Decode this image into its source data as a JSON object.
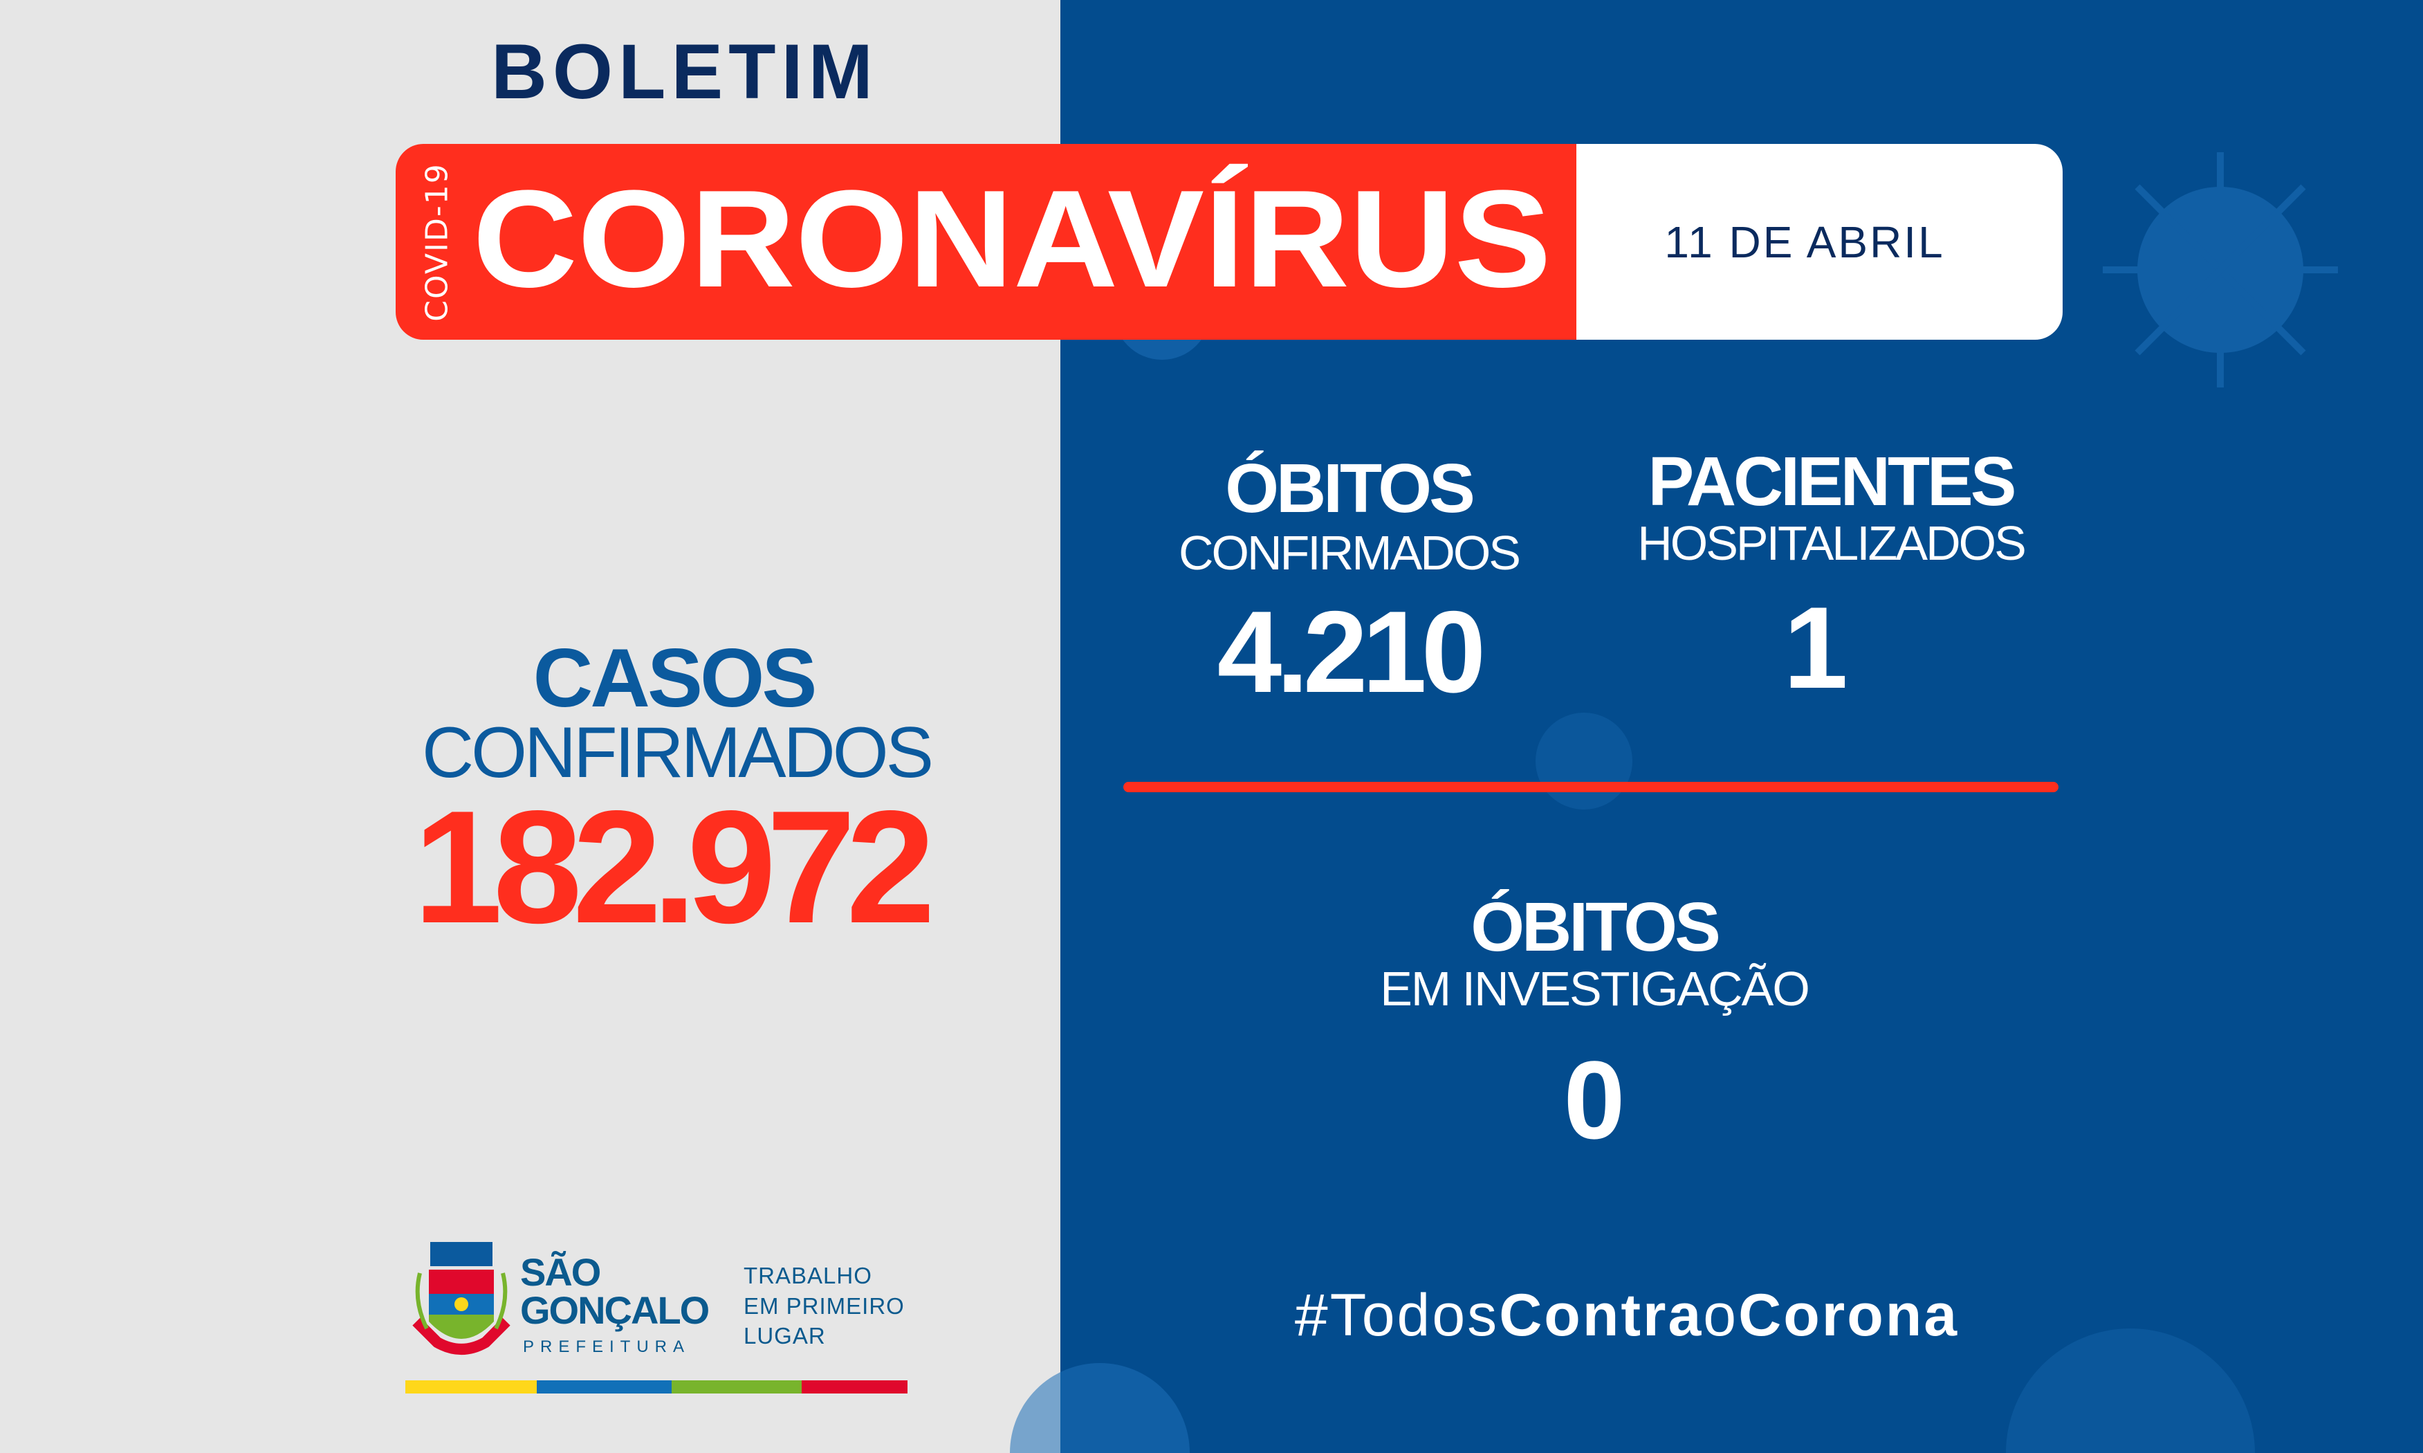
{
  "header": {
    "title": "BOLETIM",
    "banner": "CORONAVÍRUS",
    "vertical_tag": "COVID-19",
    "date": "11 DE ABRIL"
  },
  "cases": {
    "title": "CASOS",
    "subtitle": "CONFIRMADOS",
    "value": "182.972"
  },
  "deaths": {
    "title": "ÓBITOS",
    "subtitle": "CONFIRMADOS",
    "value": "4.210"
  },
  "hospitalized": {
    "title": "PACIENTES",
    "subtitle": "HOSPITALIZADOS",
    "value": "1"
  },
  "investigation": {
    "title": "ÓBITOS",
    "subtitle": "EM INVESTIGAÇÃO",
    "value": "0"
  },
  "hashtag": {
    "prefix": "#Todos",
    "bold1": "Contra",
    "mid": "o",
    "bold2": "Corona"
  },
  "logo": {
    "name_line1": "SÃO",
    "name_line2": "GONÇALO",
    "sub": "PREFEITURA",
    "slogan": [
      "TRABALHO",
      "EM PRIMEIRO",
      "LUGAR"
    ],
    "crest_text": "SÃO GONÇALO"
  },
  "colors": {
    "left_bg": "#e6e6e6",
    "right_bg": "#034c8e",
    "red": "#ff2e1e",
    "navy": "#0a2a5e",
    "blue_text": "#0b5a9e",
    "stripe": [
      "#fed71a",
      "#1170b8",
      "#78b42c",
      "#e0082c"
    ]
  }
}
